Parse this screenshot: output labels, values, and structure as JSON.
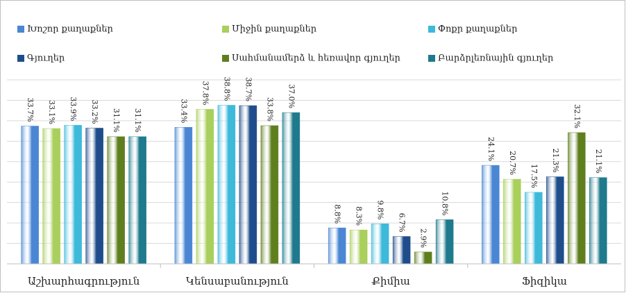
{
  "chart_data": {
    "type": "bar",
    "categories": [
      "Աշխարհագրություն",
      "Կենսաբանություն",
      "Քիմիա",
      "Ֆիզիկա"
    ],
    "series": [
      {
        "name": "Խոշոր քաղաքներ",
        "color": "#4a86d4",
        "values": [
          33.7,
          33.4,
          8.8,
          24.1
        ],
        "value_labels": [
          "33.7%",
          "33.4%",
          "8.8%",
          "24.1%"
        ]
      },
      {
        "name": "Միջին քաղաքներ",
        "color": "#a9cf5c",
        "values": [
          33.1,
          37.8,
          8.3,
          20.7
        ],
        "value_labels": [
          "33.1%",
          "37.8%",
          "8.3%",
          "20.7%"
        ]
      },
      {
        "name": "Փոքր քաղաքներ",
        "color": "#3db9da",
        "values": [
          33.9,
          38.8,
          9.8,
          17.5
        ],
        "value_labels": [
          "33.9%",
          "38.8%",
          "9.8%",
          "17.5%"
        ]
      },
      {
        "name": "Գյուղեր",
        "color": "#1f4d8c",
        "values": [
          33.2,
          38.7,
          6.7,
          21.3
        ],
        "value_labels": [
          "33.2%",
          "38.7%",
          "6.7%",
          "21.3%"
        ]
      },
      {
        "name": "Սահմանամերձ և հեռավոր գյուղեր",
        "color": "#5f7f1f",
        "values": [
          31.1,
          33.8,
          2.9,
          32.1
        ],
        "value_labels": [
          "31.1%",
          "33.8%",
          "2.9%",
          "32.1%"
        ]
      },
      {
        "name": "Բարձրլեռնային գյուղեր",
        "color": "#1e7a8c",
        "values": [
          31.1,
          37.0,
          10.8,
          21.1
        ],
        "value_labels": [
          "31.1%",
          "37.0%",
          "10.8%",
          "21.1%"
        ]
      }
    ],
    "ylim": [
      0,
      45
    ],
    "yticks": [
      0,
      5,
      10,
      15,
      20,
      25,
      30,
      35,
      40,
      45
    ],
    "grid": true
  }
}
